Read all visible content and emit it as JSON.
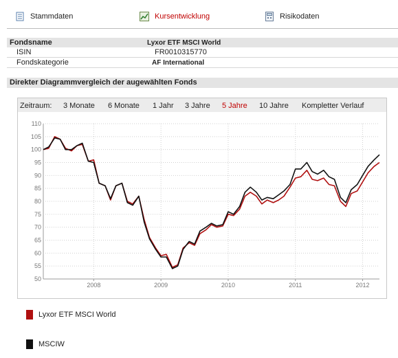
{
  "tabs": [
    {
      "label": "Stammdaten",
      "icon": "document-icon",
      "active": false
    },
    {
      "label": "Kursentwicklung",
      "icon": "chart-icon",
      "active": true
    },
    {
      "label": "Risikodaten",
      "icon": "calculator-icon",
      "active": false
    }
  ],
  "fund_table": {
    "header": {
      "key": "Fondsname",
      "value": "Lyxor ETF MSCI World"
    },
    "rows": [
      {
        "key": "ISIN",
        "value": "FR0010315770",
        "bold": false
      },
      {
        "key": "Fondskategorie",
        "value": "AF International",
        "bold": true
      }
    ]
  },
  "section_title": "Direkter Diagrammvergleich der augewählten Fonds",
  "zeitraum": {
    "label": "Zeitraum:",
    "options": [
      "3 Monate",
      "6 Monate",
      "1 Jahr",
      "3 Jahre",
      "5 Jahre",
      "10 Jahre",
      "Kompletter Verlauf"
    ],
    "selected": "5 Jahre"
  },
  "chart_data": {
    "type": "line",
    "ylim": [
      50,
      110
    ],
    "yticks": [
      50,
      55,
      60,
      65,
      70,
      75,
      80,
      85,
      90,
      95,
      100,
      105,
      110
    ],
    "xlim": [
      2007.25,
      2012.25
    ],
    "xticks": [
      {
        "label": "2008",
        "value": 2008
      },
      {
        "label": "2009",
        "value": 2009
      },
      {
        "label": "2010",
        "value": 2010
      },
      {
        "label": "2011",
        "value": 2011
      },
      {
        "label": "2012",
        "value": 2012
      }
    ],
    "grid": true,
    "legend_position": "bottom",
    "x": [
      2007.25,
      2007.33,
      2007.42,
      2007.5,
      2007.58,
      2007.67,
      2007.75,
      2007.83,
      2007.92,
      2008.0,
      2008.08,
      2008.17,
      2008.25,
      2008.33,
      2008.42,
      2008.5,
      2008.58,
      2008.67,
      2008.75,
      2008.83,
      2008.92,
      2009.0,
      2009.08,
      2009.17,
      2009.25,
      2009.33,
      2009.42,
      2009.5,
      2009.58,
      2009.67,
      2009.75,
      2009.83,
      2009.92,
      2010.0,
      2010.08,
      2010.17,
      2010.25,
      2010.33,
      2010.42,
      2010.5,
      2010.58,
      2010.67,
      2010.75,
      2010.83,
      2010.92,
      2011.0,
      2011.08,
      2011.17,
      2011.25,
      2011.33,
      2011.42,
      2011.5,
      2011.58,
      2011.67,
      2011.75,
      2011.83,
      2011.92,
      2012.0,
      2012.08,
      2012.17,
      2012.25
    ],
    "series": [
      {
        "name": "Lyxor ETF MSCI World",
        "color": "#b01010",
        "values": [
          100,
          100.5,
          105,
          104,
          100.5,
          99.5,
          101.5,
          102,
          95.5,
          96,
          87,
          86,
          80.5,
          86,
          87,
          80,
          79,
          82,
          73,
          66,
          62,
          59,
          59.5,
          54.5,
          55.5,
          62,
          64,
          63,
          67.5,
          69,
          71,
          70,
          70.5,
          75,
          74.5,
          77,
          82,
          83.5,
          82,
          79,
          80.5,
          79.5,
          80.5,
          82,
          85.5,
          89,
          89.5,
          92,
          88.5,
          88,
          89,
          86.5,
          86,
          80,
          78,
          83,
          84,
          87.5,
          91,
          93.5,
          95
        ]
      },
      {
        "name": "MSCIW",
        "color": "#111111",
        "values": [
          100,
          101,
          104.5,
          104,
          100,
          100,
          101.5,
          102.5,
          95.5,
          95,
          87,
          86,
          81,
          86,
          87,
          79.5,
          78.5,
          82,
          72,
          65.5,
          61.5,
          58.5,
          58.5,
          54,
          55,
          61.5,
          64.5,
          63.5,
          68.5,
          70,
          71.5,
          70.5,
          71,
          76,
          75,
          78,
          83.5,
          85.5,
          83.5,
          80.5,
          81.5,
          81,
          82.5,
          84,
          86.5,
          92.5,
          92.5,
          95,
          91.5,
          90.5,
          92,
          89.5,
          88.5,
          81.5,
          79.5,
          84.5,
          86.5,
          90,
          93.5,
          96,
          98
        ]
      }
    ]
  },
  "legend": [
    {
      "label": "Lyxor ETF MSCI World",
      "color": "#b01010"
    },
    {
      "label": "MSCIW",
      "color": "#111111"
    }
  ]
}
